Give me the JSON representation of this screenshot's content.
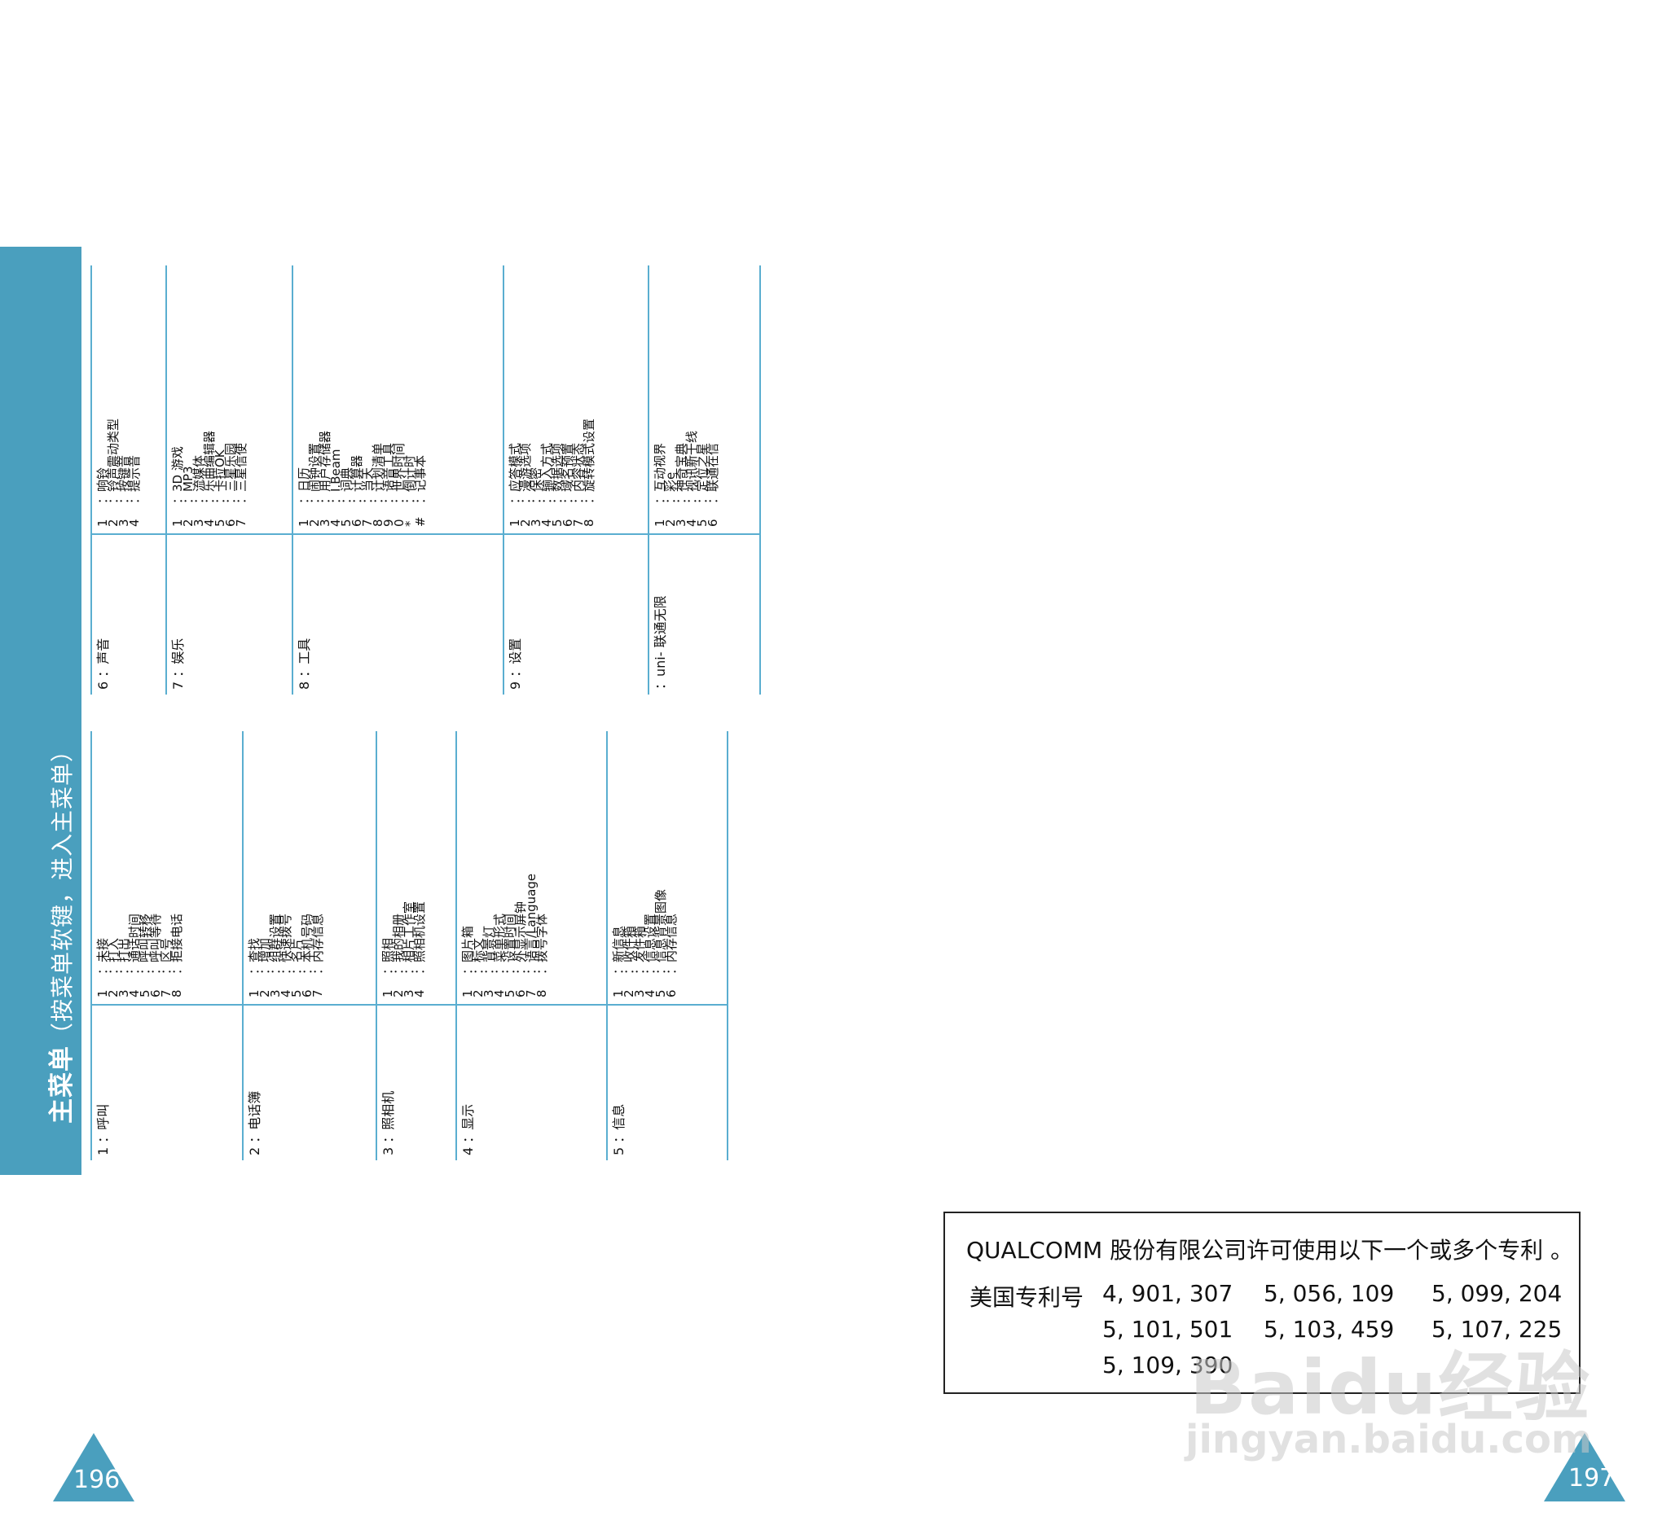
{
  "sidebar": {
    "title": "主菜单",
    "subtitle": "（按菜单软键，进入主菜单）"
  },
  "left_menus": [
    {
      "label": "1 ：呼叫",
      "items": [
        [
          "1",
          "：未接"
        ],
        [
          "2",
          "：打入"
        ],
        [
          "3",
          "：打出"
        ],
        [
          "4",
          "：通话时间"
        ],
        [
          "5",
          "：呼叫转移"
        ],
        [
          "6",
          "：呼叫等待"
        ],
        [
          "7",
          "：区号"
        ],
        [
          "8",
          "：拒接电话"
        ]
      ]
    },
    {
      "label": "2 ：电话簿",
      "items": [
        [
          "1",
          "：查找"
        ],
        [
          "2",
          "：增加"
        ],
        [
          "3",
          "：组群设置"
        ],
        [
          "4",
          "：快速拨号"
        ],
        [
          "5",
          "：名片"
        ],
        [
          "6",
          "：本机号码"
        ],
        [
          "7",
          "：内存信息"
        ]
      ]
    },
    {
      "label": "3 ：照相机",
      "items": [
        [
          "1",
          "：照相"
        ],
        [
          "2",
          "：我的相册"
        ],
        [
          "3",
          "：相片工作室"
        ],
        [
          "4",
          "：照相机设置"
        ]
      ]
    },
    {
      "label": "4 ：显示",
      "items": [
        [
          "1",
          "：图片箱"
        ],
        [
          "2",
          "：标文"
        ],
        [
          "3",
          "：背景灯"
        ],
        [
          "4",
          "：菜单形式"
        ],
        [
          "5",
          "：设置时间"
        ],
        [
          "6",
          "：外显示屏钟"
        ],
        [
          "7",
          "：语言/Language"
        ],
        [
          "8",
          "：拨号字体"
        ]
      ]
    },
    {
      "label": "5 ：信息",
      "items": [
        [
          "1",
          "：新信息"
        ],
        [
          "2",
          "：收件箱"
        ],
        [
          "3",
          "：发件箱"
        ],
        [
          "4",
          "：信息设置"
        ],
        [
          "5",
          "：信息背景图像"
        ],
        [
          "6",
          "：内存信息"
        ]
      ]
    }
  ],
  "right_menus": [
    {
      "label": "6 ：声音",
      "items": [
        [
          "1",
          "：响铃"
        ],
        [
          "2",
          "：铃声震动类型"
        ],
        [
          "3",
          "：按键音"
        ],
        [
          "4",
          "：提示音"
        ]
      ]
    },
    {
      "label": "7 ：娱乐",
      "items": [
        [
          "1",
          "：3D 游戏"
        ],
        [
          "2",
          "：MP3"
        ],
        [
          "3",
          "：流媒体"
        ],
        [
          "4",
          "：乐曲编辑器"
        ],
        [
          "5",
          "：卡拉OK"
        ],
        [
          "6",
          "：三星乐园"
        ],
        [
          "7",
          "：三星信使"
        ]
      ]
    },
    {
      "label": "8 ：工具",
      "items": [
        [
          "1",
          "：日历"
        ],
        [
          "2",
          "：闹钟设置"
        ],
        [
          "3",
          "：用户存储器"
        ],
        [
          "4",
          "：I.Beam"
        ],
        [
          "5",
          "：词典"
        ],
        [
          "6",
          "：计算器"
        ],
        [
          "7",
          "：当天"
        ],
        [
          "8",
          "：计划清单"
        ],
        [
          "9",
          "：语音工具"
        ],
        [
          "0",
          "：世界时间"
        ],
        [
          "*",
          "：倒计时"
        ],
        [
          "#",
          "：记事本"
        ]
      ]
    },
    {
      "label": "9 ：设置",
      "items": [
        [
          "1",
          "：应答模式"
        ],
        [
          "2",
          "：漫游选项"
        ],
        [
          "3",
          "：保密"
        ],
        [
          "4",
          "：输入方式"
        ],
        [
          "5",
          "：数据选项"
        ],
        [
          "6",
          "：域名预置"
        ],
        [
          "7",
          "：内容状态"
        ],
        [
          "8",
          "：旋转模式设置"
        ]
      ]
    },
    {
      "label": "：uni- 联通无限",
      "items": [
        [
          "1",
          "：互动视界"
        ],
        [
          "2",
          "：彩e"
        ],
        [
          "3",
          "：神奇宝典"
        ],
        [
          "4",
          "：视讯新干线"
        ],
        [
          "5",
          "：定位之星"
        ],
        [
          "6",
          "：联通在信"
        ]
      ]
    }
  ],
  "patent": {
    "title": "QUALCOMM 股份有限公司许可使用以下一个或多个专利 。",
    "label": "美国专利号",
    "numbers": [
      "4, 901, 307",
      "5, 056, 109",
      "5, 099, 204",
      "5, 101, 501",
      "5, 103, 459",
      "5, 107, 225",
      "5, 109, 390"
    ]
  },
  "pages": {
    "left": "196",
    "right": "197"
  },
  "watermark": {
    "logo": "Baidu经验",
    "url": "jingyan.baidu.com"
  },
  "colors": {
    "accent": "#4a9fbe",
    "line": "#5aaed0"
  }
}
